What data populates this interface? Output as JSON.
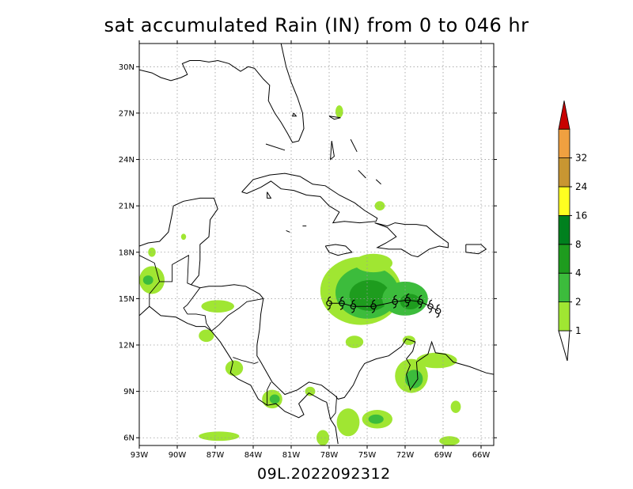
{
  "title": "sat accumulated Rain (IN) from 0 to 046 hr",
  "subtitle": "09L.2022092312",
  "map": {
    "lon_min": -93,
    "lon_max": -65,
    "lat_min": 5.5,
    "lat_max": 31.5,
    "lon_ticks": [
      {
        "v": -93,
        "label": "93W"
      },
      {
        "v": -90,
        "label": "90W"
      },
      {
        "v": -87,
        "label": "87W"
      },
      {
        "v": -84,
        "label": "84W"
      },
      {
        "v": -81,
        "label": "81W"
      },
      {
        "v": -78,
        "label": "78W"
      },
      {
        "v": -75,
        "label": "75W"
      },
      {
        "v": -72,
        "label": "72W"
      },
      {
        "v": -69,
        "label": "69W"
      },
      {
        "v": -66,
        "label": "66W"
      }
    ],
    "lat_ticks": [
      {
        "v": 6,
        "label": "6N"
      },
      {
        "v": 9,
        "label": "9N"
      },
      {
        "v": 12,
        "label": "12N"
      },
      {
        "v": 15,
        "label": "15N"
      },
      {
        "v": 18,
        "label": "18N"
      },
      {
        "v": 21,
        "label": "21N"
      },
      {
        "v": 24,
        "label": "24N"
      },
      {
        "v": 27,
        "label": "27N"
      },
      {
        "v": 30,
        "label": "30N"
      }
    ],
    "grid": true
  },
  "colorbar": {
    "levels": [
      {
        "label": "1",
        "color": "#a0e632"
      },
      {
        "label": "2",
        "color": "#3cbc3c"
      },
      {
        "label": "4",
        "color": "#1e9c1e"
      },
      {
        "label": "8",
        "color": "#00801e"
      },
      {
        "label": "16",
        "color": "#ffff20"
      },
      {
        "label": "24",
        "color": "#c89632"
      },
      {
        "label": "32",
        "color": "#f0a040"
      }
    ],
    "over_color": "#c80000",
    "level_labels": [
      "1",
      "2",
      "4",
      "8",
      "16",
      "24",
      "32"
    ]
  },
  "storm_track": [
    {
      "lon": -78.0,
      "lat": 14.7
    },
    {
      "lon": -77.0,
      "lat": 14.7
    },
    {
      "lon": -76.1,
      "lat": 14.5
    },
    {
      "lon": -74.5,
      "lat": 14.5
    },
    {
      "lon": -72.8,
      "lat": 14.8
    },
    {
      "lon": -71.8,
      "lat": 14.9
    },
    {
      "lon": -70.8,
      "lat": 14.8
    },
    {
      "lon": -70.0,
      "lat": 14.5
    },
    {
      "lon": -69.4,
      "lat": 14.2
    }
  ],
  "rain_areas": [
    {
      "lon": -75.5,
      "lat": 15.5,
      "rx": 3.2,
      "ry": 2.2,
      "level": 0
    },
    {
      "lon": -75.0,
      "lat": 15.4,
      "rx": 2.5,
      "ry": 1.7,
      "level": 1
    },
    {
      "lon": -74.8,
      "lat": 15.2,
      "rx": 1.6,
      "ry": 1.0,
      "level": 2
    },
    {
      "lon": -72.0,
      "lat": 15.0,
      "rx": 1.8,
      "ry": 1.1,
      "level": 1
    },
    {
      "lon": -71.6,
      "lat": 14.8,
      "rx": 0.8,
      "ry": 0.5,
      "level": 2
    },
    {
      "lon": -74.5,
      "lat": 17.3,
      "rx": 1.5,
      "ry": 0.6,
      "level": 0
    },
    {
      "lon": -71.5,
      "lat": 10.0,
      "rx": 1.3,
      "ry": 1.1,
      "level": 0
    },
    {
      "lon": -71.3,
      "lat": 9.8,
      "rx": 0.7,
      "ry": 0.6,
      "level": 1
    },
    {
      "lon": -69.5,
      "lat": 11.0,
      "rx": 1.6,
      "ry": 0.5,
      "level": 0
    },
    {
      "lon": -74.2,
      "lat": 7.2,
      "rx": 1.2,
      "ry": 0.6,
      "level": 0
    },
    {
      "lon": -74.3,
      "lat": 7.2,
      "rx": 0.6,
      "ry": 0.3,
      "level": 1
    },
    {
      "lon": -76.5,
      "lat": 7.0,
      "rx": 0.9,
      "ry": 0.9,
      "level": 0
    },
    {
      "lon": -82.5,
      "lat": 8.5,
      "rx": 0.8,
      "ry": 0.6,
      "level": 0
    },
    {
      "lon": -82.3,
      "lat": 8.5,
      "rx": 0.4,
      "ry": 0.3,
      "level": 1
    },
    {
      "lon": -86.7,
      "lat": 6.1,
      "rx": 1.6,
      "ry": 0.3,
      "level": 0
    },
    {
      "lon": -92.0,
      "lat": 16.2,
      "rx": 1.0,
      "ry": 0.9,
      "level": 0
    },
    {
      "lon": -92.3,
      "lat": 16.2,
      "rx": 0.4,
      "ry": 0.3,
      "level": 1
    },
    {
      "lon": -86.8,
      "lat": 14.5,
      "rx": 1.3,
      "ry": 0.4,
      "level": 0
    },
    {
      "lon": -87.7,
      "lat": 12.6,
      "rx": 0.6,
      "ry": 0.4,
      "level": 0
    },
    {
      "lon": -85.5,
      "lat": 10.5,
      "rx": 0.7,
      "ry": 0.5,
      "level": 0
    },
    {
      "lon": -92.0,
      "lat": 18.0,
      "rx": 0.3,
      "ry": 0.3,
      "level": 0
    },
    {
      "lon": -89.5,
      "lat": 19.0,
      "rx": 0.2,
      "ry": 0.2,
      "level": 0
    },
    {
      "lon": -79.5,
      "lat": 9.0,
      "rx": 0.4,
      "ry": 0.3,
      "level": 0
    },
    {
      "lon": -76.0,
      "lat": 12.2,
      "rx": 0.7,
      "ry": 0.4,
      "level": 0
    },
    {
      "lon": -71.7,
      "lat": 12.3,
      "rx": 0.5,
      "ry": 0.3,
      "level": 0
    },
    {
      "lon": -77.2,
      "lat": 27.1,
      "rx": 0.3,
      "ry": 0.4,
      "level": 0
    },
    {
      "lon": -74.0,
      "lat": 21.0,
      "rx": 0.4,
      "ry": 0.3,
      "level": 0
    },
    {
      "lon": -68.0,
      "lat": 8.0,
      "rx": 0.4,
      "ry": 0.4,
      "level": 0
    },
    {
      "lon": -68.5,
      "lat": 5.8,
      "rx": 0.8,
      "ry": 0.3,
      "level": 0
    },
    {
      "lon": -78.5,
      "lat": 6.0,
      "rx": 0.5,
      "ry": 0.5,
      "level": 0
    }
  ],
  "coastlines": [
    [
      [
        -93,
        13.9
      ],
      [
        -92.2,
        14.5
      ],
      [
        -91.3,
        13.9
      ],
      [
        -90.1,
        13.8
      ],
      [
        -89.2,
        13.4
      ],
      [
        -88.5,
        13.2
      ],
      [
        -87.8,
        13.2
      ],
      [
        -87.3,
        12.9
      ],
      [
        -86.6,
        12.2
      ],
      [
        -85.9,
        11.3
      ],
      [
        -85.6,
        10.9
      ],
      [
        -85.8,
        10.2
      ],
      [
        -85.2,
        9.8
      ],
      [
        -84.7,
        9.6
      ],
      [
        -84.2,
        9.4
      ],
      [
        -83.6,
        8.5
      ],
      [
        -82.9,
        8.1
      ],
      [
        -82.2,
        8.2
      ],
      [
        -81.5,
        7.7
      ],
      [
        -80.4,
        7.3
      ],
      [
        -80.0,
        7.5
      ],
      [
        -80.4,
        8.2
      ],
      [
        -79.6,
        8.9
      ],
      [
        -78.5,
        8.4
      ],
      [
        -78.2,
        8.3
      ],
      [
        -77.9,
        7.2
      ],
      [
        -77.5,
        6.7
      ],
      [
        -77.3,
        5.6
      ]
    ],
    [
      [
        -93,
        18.4
      ],
      [
        -92.3,
        18.6
      ],
      [
        -91.4,
        18.7
      ],
      [
        -90.7,
        19.3
      ],
      [
        -90.4,
        20.5
      ],
      [
        -90.3,
        21.0
      ],
      [
        -89.5,
        21.3
      ],
      [
        -88.2,
        21.5
      ],
      [
        -87.1,
        21.5
      ],
      [
        -86.8,
        20.8
      ],
      [
        -87.4,
        20.1
      ],
      [
        -87.5,
        19.0
      ],
      [
        -88.2,
        18.5
      ],
      [
        -88.2,
        17.5
      ],
      [
        -88.3,
        16.5
      ],
      [
        -88.9,
        15.9
      ],
      [
        -88.2,
        15.7
      ],
      [
        -87.5,
        15.8
      ],
      [
        -86.5,
        15.8
      ],
      [
        -85.5,
        15.9
      ],
      [
        -84.6,
        15.8
      ],
      [
        -83.5,
        15.3
      ],
      [
        -83.2,
        15.0
      ],
      [
        -83.4,
        14.0
      ],
      [
        -83.5,
        13.0
      ],
      [
        -83.7,
        12.0
      ],
      [
        -83.7,
        11.3
      ],
      [
        -83.4,
        10.9
      ],
      [
        -82.5,
        9.6
      ],
      [
        -82.0,
        9.2
      ],
      [
        -81.5,
        8.8
      ],
      [
        -80.5,
        9.1
      ],
      [
        -79.6,
        9.6
      ],
      [
        -78.6,
        9.4
      ],
      [
        -77.5,
        8.7
      ],
      [
        -77.3,
        8.5
      ],
      [
        -76.8,
        8.6
      ],
      [
        -76.1,
        9.4
      ],
      [
        -75.6,
        10.3
      ],
      [
        -75.2,
        10.8
      ],
      [
        -74.3,
        11.1
      ],
      [
        -73.3,
        11.3
      ],
      [
        -72.3,
        11.9
      ],
      [
        -71.9,
        12.4
      ],
      [
        -71.2,
        12.2
      ],
      [
        -71.4,
        11.6
      ],
      [
        -71.9,
        11.1
      ],
      [
        -71.6,
        10.7
      ],
      [
        -71.9,
        10.1
      ],
      [
        -71.6,
        9.1
      ],
      [
        -71.0,
        9.8
      ],
      [
        -71.1,
        10.9
      ],
      [
        -70.2,
        11.4
      ],
      [
        -69.9,
        12.2
      ],
      [
        -69.6,
        11.5
      ],
      [
        -68.8,
        11.4
      ],
      [
        -68.2,
        10.9
      ],
      [
        -66.9,
        10.6
      ],
      [
        -65.6,
        10.2
      ],
      [
        -65.0,
        10.1
      ]
    ],
    [
      [
        -81.8,
        31.5
      ],
      [
        -81.4,
        30.0
      ],
      [
        -81.0,
        29.0
      ],
      [
        -80.5,
        28.0
      ],
      [
        -80.1,
        27.0
      ],
      [
        -80.0,
        26.0
      ],
      [
        -80.4,
        25.2
      ],
      [
        -80.9,
        25.1
      ],
      [
        -81.3,
        25.7
      ],
      [
        -81.8,
        26.4
      ],
      [
        -82.3,
        27.0
      ],
      [
        -82.8,
        27.8
      ],
      [
        -82.7,
        28.8
      ],
      [
        -83.2,
        29.2
      ],
      [
        -83.9,
        29.9
      ],
      [
        -84.4,
        30.0
      ],
      [
        -85.0,
        29.7
      ],
      [
        -85.9,
        30.2
      ],
      [
        -86.8,
        30.4
      ],
      [
        -87.5,
        30.3
      ],
      [
        -88.2,
        30.4
      ],
      [
        -89.0,
        30.4
      ],
      [
        -89.6,
        30.2
      ],
      [
        -89.2,
        29.5
      ],
      [
        -89.7,
        29.3
      ],
      [
        -90.5,
        29.1
      ],
      [
        -91.3,
        29.3
      ],
      [
        -92.0,
        29.6
      ],
      [
        -93.0,
        29.8
      ]
    ],
    [
      [
        -84.9,
        21.9
      ],
      [
        -84.0,
        22.7
      ],
      [
        -82.7,
        23.0
      ],
      [
        -81.5,
        23.1
      ],
      [
        -80.3,
        22.9
      ],
      [
        -79.3,
        22.4
      ],
      [
        -78.3,
        22.3
      ],
      [
        -77.2,
        21.7
      ],
      [
        -76.0,
        21.2
      ],
      [
        -75.2,
        20.7
      ],
      [
        -74.2,
        20.2
      ],
      [
        -74.3,
        20.0
      ],
      [
        -75.6,
        19.9
      ],
      [
        -76.8,
        20.0
      ],
      [
        -77.7,
        19.9
      ],
      [
        -77.2,
        20.6
      ],
      [
        -78.0,
        21.0
      ],
      [
        -78.7,
        21.6
      ],
      [
        -79.8,
        21.7
      ],
      [
        -80.8,
        22.0
      ],
      [
        -81.8,
        22.1
      ],
      [
        -82.6,
        22.6
      ],
      [
        -83.4,
        22.2
      ],
      [
        -84.5,
        21.8
      ],
      [
        -84.9,
        21.9
      ]
    ],
    [
      [
        -74.4,
        19.9
      ],
      [
        -73.4,
        19.7
      ],
      [
        -72.8,
        19.9
      ],
      [
        -72.0,
        19.8
      ],
      [
        -71.1,
        19.8
      ],
      [
        -70.3,
        19.7
      ],
      [
        -69.6,
        19.2
      ],
      [
        -68.6,
        18.6
      ],
      [
        -68.6,
        18.3
      ],
      [
        -69.3,
        18.4
      ],
      [
        -70.1,
        18.2
      ],
      [
        -71.0,
        17.7
      ],
      [
        -71.5,
        17.8
      ],
      [
        -72.3,
        18.2
      ],
      [
        -73.3,
        18.2
      ],
      [
        -74.2,
        18.3
      ],
      [
        -73.5,
        18.6
      ],
      [
        -72.7,
        19.0
      ],
      [
        -73.4,
        19.6
      ],
      [
        -74.4,
        19.9
      ]
    ],
    [
      [
        -78.3,
        18.4
      ],
      [
        -77.5,
        18.5
      ],
      [
        -76.7,
        18.4
      ],
      [
        -76.2,
        18.0
      ],
      [
        -76.8,
        17.9
      ],
      [
        -77.3,
        17.8
      ],
      [
        -78.0,
        18.0
      ],
      [
        -78.3,
        18.4
      ]
    ],
    [
      [
        -67.2,
        18.5
      ],
      [
        -66.0,
        18.5
      ],
      [
        -65.6,
        18.2
      ],
      [
        -66.2,
        17.9
      ],
      [
        -67.2,
        18.0
      ],
      [
        -67.2,
        18.5
      ]
    ],
    [
      [
        -78.0,
        26.8
      ],
      [
        -77.1,
        26.7
      ],
      [
        -77.6,
        26.6
      ],
      [
        -78.0,
        26.8
      ]
    ],
    [
      [
        -77.8,
        25.2
      ],
      [
        -77.6,
        24.2
      ],
      [
        -77.9,
        24.0
      ],
      [
        -77.8,
        25.2
      ]
    ],
    [
      [
        -76.3,
        25.3
      ],
      [
        -75.8,
        24.5
      ]
    ],
    [
      [
        -75.7,
        23.3
      ],
      [
        -75.1,
        22.8
      ]
    ],
    [
      [
        -74.3,
        22.7
      ],
      [
        -73.9,
        22.4
      ]
    ],
    [
      [
        -82.9,
        21.9
      ],
      [
        -82.6,
        21.5
      ],
      [
        -82.9,
        21.5
      ],
      [
        -82.9,
        21.9
      ]
    ],
    [
      [
        -81.4,
        19.4
      ],
      [
        -81.1,
        19.3
      ]
    ],
    [
      [
        -80.1,
        19.7
      ],
      [
        -79.8,
        19.7
      ]
    ],
    [
      [
        -80.8,
        27.0
      ],
      [
        -80.6,
        26.8
      ],
      [
        -80.9,
        26.8
      ],
      [
        -80.8,
        27.0
      ]
    ],
    [
      [
        -83.0,
        25.0
      ],
      [
        -81.5,
        24.6
      ]
    ]
  ],
  "borders": [
    [
      [
        -92.2,
        14.5
      ],
      [
        -92.2,
        15.3
      ],
      [
        -91.4,
        16.1
      ],
      [
        -90.4,
        16.1
      ],
      [
        -90.4,
        17.2
      ],
      [
        -89.1,
        17.8
      ],
      [
        -89.2,
        16.0
      ],
      [
        -88.9,
        15.9
      ]
    ],
    [
      [
        -89.2,
        14.0
      ],
      [
        -89.5,
        14.4
      ],
      [
        -89.2,
        14.6
      ],
      [
        -88.2,
        15.7
      ]
    ],
    [
      [
        -89.2,
        14.0
      ],
      [
        -88.5,
        14.0
      ],
      [
        -87.8,
        13.9
      ],
      [
        -87.7,
        13.4
      ],
      [
        -87.3,
        12.9
      ]
    ],
    [
      [
        -87.3,
        12.9
      ],
      [
        -86.7,
        13.3
      ],
      [
        -86.0,
        13.9
      ],
      [
        -85.1,
        14.4
      ],
      [
        -84.5,
        14.8
      ],
      [
        -83.2,
        15.0
      ]
    ],
    [
      [
        -85.6,
        11.2
      ],
      [
        -84.9,
        11.0
      ],
      [
        -83.9,
        10.8
      ],
      [
        -83.6,
        10.9
      ]
    ],
    [
      [
        -82.9,
        8.1
      ],
      [
        -82.9,
        9.1
      ],
      [
        -82.6,
        9.6
      ]
    ],
    [
      [
        -77.4,
        8.7
      ],
      [
        -77.5,
        7.6
      ],
      [
        -77.9,
        7.2
      ]
    ],
    [
      [
        -93,
        17.8
      ],
      [
        -91.8,
        17.3
      ],
      [
        -91.4,
        16.1
      ]
    ]
  ],
  "map_labels": []
}
